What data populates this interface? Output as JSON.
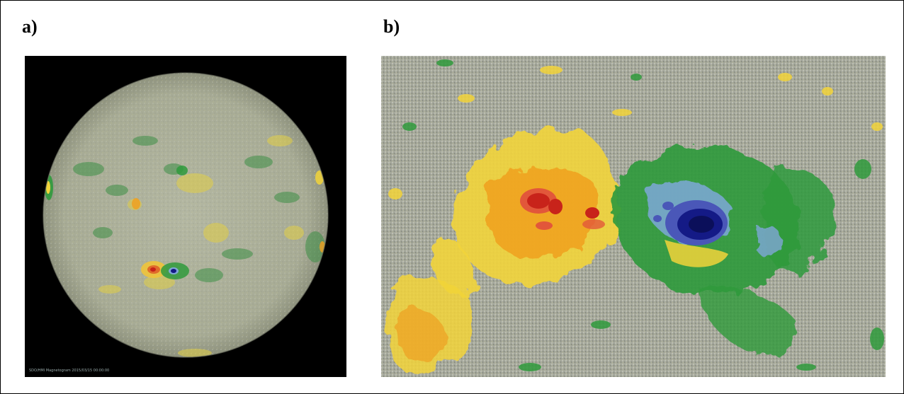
{
  "panels": [
    {
      "label": "a)",
      "image_semantic": "full-disk-magnetogram",
      "caption": "SDO/HMI Magnetogram 2015/03/15 00:00:00"
    },
    {
      "label": "b)",
      "image_semantic": "active-region-magnetogram-closeup"
    }
  ],
  "colors": {
    "background": "#000000",
    "disk_base": "#a8ad97",
    "positive_weak": "#f2d43a",
    "positive_mid": "#f0a020",
    "positive_strong": "#c8231a",
    "negative_weak": "#2f9a3c",
    "negative_mid": "#7fa8d8",
    "negative_strong": "#141a86",
    "granulation": "#b9bcae"
  }
}
